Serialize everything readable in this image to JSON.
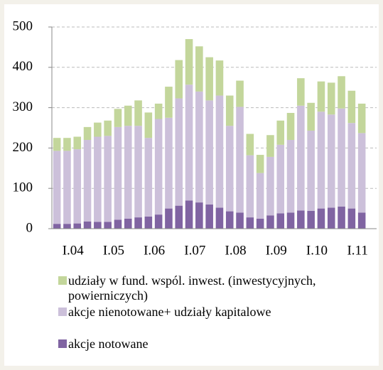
{
  "chart_data": {
    "type": "stacked-bar",
    "categories": [
      null,
      null,
      "I.04",
      null,
      null,
      null,
      "I.05",
      null,
      null,
      null,
      "I.06",
      null,
      null,
      null,
      "I.07",
      null,
      null,
      null,
      "I.08",
      null,
      null,
      null,
      "I.09",
      null,
      null,
      null,
      "I.10",
      null,
      null,
      null,
      "I.11"
    ],
    "series": [
      {
        "name": "udziały w fund. wspól. inwest. (inwestycyjnych, powierniczych)",
        "color": "#c3d69b",
        "values": [
          32,
          32,
          31,
          32,
          35,
          38,
          45,
          50,
          63,
          63,
          38,
          77,
          95,
          113,
          112,
          107,
          87,
          75,
          65,
          53,
          45,
          54,
          60,
          67,
          68,
          69,
          75,
          79,
          80,
          80,
          73
        ]
      },
      {
        "name": "akcje nienotowane+ udziały kapitalowe",
        "color": "#ccc0da",
        "values": [
          181,
          181,
          184,
          202,
          211,
          213,
          230,
          230,
          227,
          195,
          237,
          225,
          266,
          287,
          275,
          258,
          278,
          212,
          262,
          154,
          113,
          145,
          170,
          180,
          260,
          199,
          240,
          231,
          243,
          212,
          197
        ]
      },
      {
        "name": "akcje notowane",
        "color": "#8064a2",
        "values": [
          12,
          12,
          13,
          18,
          17,
          17,
          22,
          25,
          28,
          30,
          35,
          50,
          57,
          70,
          65,
          60,
          52,
          43,
          40,
          28,
          25,
          33,
          38,
          40,
          45,
          44,
          50,
          52,
          55,
          50,
          40
        ]
      }
    ],
    "ylim": [
      0,
      500
    ],
    "yticks": [
      0,
      100,
      200,
      300,
      400,
      500
    ],
    "grid": true
  }
}
